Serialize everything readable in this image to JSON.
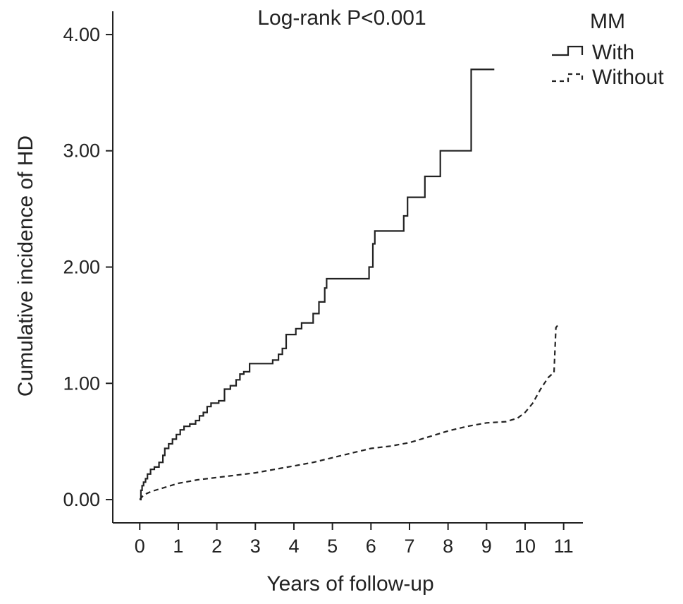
{
  "chart_data": {
    "type": "line",
    "title": "",
    "annotation": "Log-rank P<0.001",
    "xlabel": "Years of follow-up",
    "ylabel": "Cumulative incidence of HD",
    "xlim": [
      -0.7,
      11.5
    ],
    "ylim": [
      -0.2,
      4.2
    ],
    "x_ticks": [
      0,
      1,
      2,
      3,
      4,
      5,
      6,
      7,
      8,
      9,
      10,
      11
    ],
    "y_ticks": [
      0,
      1,
      2,
      3,
      4
    ],
    "y_tick_labels": [
      "0.00",
      "1.00",
      "2.00",
      "3.00",
      "4.00"
    ],
    "grid": false,
    "legend": {
      "title": "MM",
      "position": "top-right"
    },
    "series": [
      {
        "name": "With",
        "style": "solid",
        "step": true,
        "x": [
          0,
          0.03,
          0.06,
          0.1,
          0.15,
          0.2,
          0.28,
          0.38,
          0.5,
          0.6,
          0.65,
          0.75,
          0.85,
          0.95,
          1.05,
          1.15,
          1.3,
          1.45,
          1.55,
          1.65,
          1.75,
          1.85,
          2.05,
          2.2,
          2.35,
          2.5,
          2.6,
          2.7,
          2.85,
          3.25,
          3.45,
          3.6,
          3.7,
          3.8,
          4.05,
          4.2,
          4.5,
          4.65,
          4.8,
          4.85,
          5.6,
          5.95,
          6.05,
          6.1,
          6.85,
          6.95,
          7.1,
          7.4,
          7.8,
          8.6,
          9.2
        ],
        "y": [
          0,
          0.08,
          0.12,
          0.15,
          0.18,
          0.22,
          0.26,
          0.28,
          0.32,
          0.38,
          0.44,
          0.48,
          0.52,
          0.56,
          0.6,
          0.63,
          0.65,
          0.68,
          0.72,
          0.75,
          0.8,
          0.83,
          0.85,
          0.95,
          0.98,
          1.03,
          1.08,
          1.1,
          1.17,
          1.17,
          1.2,
          1.25,
          1.3,
          1.42,
          1.47,
          1.52,
          1.6,
          1.7,
          1.82,
          1.9,
          1.9,
          2.0,
          2.2,
          2.31,
          2.44,
          2.6,
          2.6,
          2.78,
          3.0,
          3.7,
          3.7
        ]
      },
      {
        "name": "Without",
        "style": "dashed",
        "step": false,
        "x": [
          0,
          0.1,
          0.3,
          0.6,
          1.0,
          1.5,
          2.0,
          2.5,
          3.0,
          3.5,
          4.0,
          4.5,
          5.0,
          5.5,
          6.0,
          6.5,
          7.0,
          7.5,
          8.0,
          8.5,
          9.0,
          9.5,
          9.8,
          10.0,
          10.2,
          10.4,
          10.5,
          10.6,
          10.7,
          10.75,
          10.8,
          10.85
        ],
        "y": [
          0,
          0.04,
          0.07,
          0.1,
          0.14,
          0.17,
          0.19,
          0.21,
          0.23,
          0.26,
          0.29,
          0.32,
          0.36,
          0.4,
          0.44,
          0.46,
          0.49,
          0.54,
          0.59,
          0.63,
          0.66,
          0.67,
          0.7,
          0.75,
          0.83,
          0.95,
          1.0,
          1.05,
          1.08,
          1.09,
          1.48,
          1.5
        ]
      }
    ]
  }
}
